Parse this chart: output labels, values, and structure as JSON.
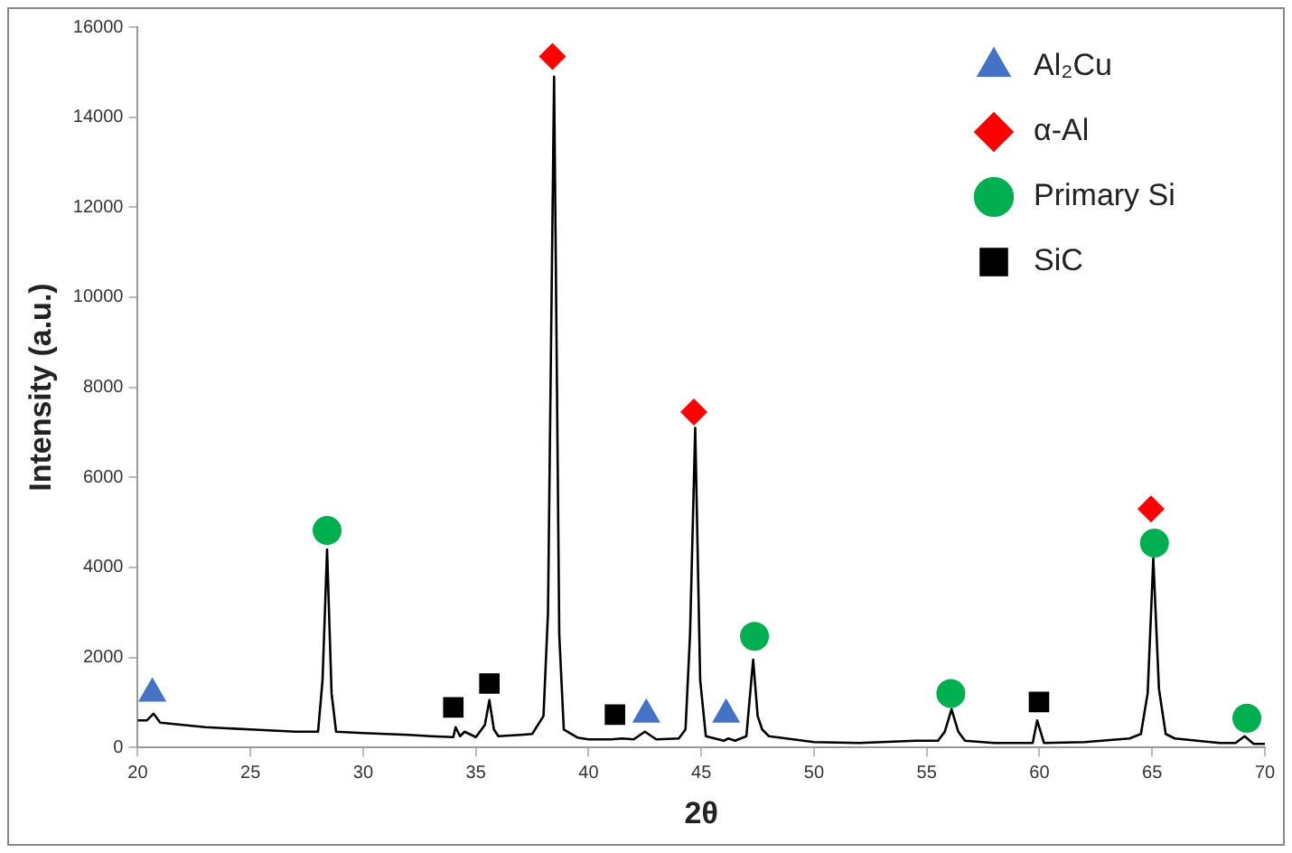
{
  "chart_data": {
    "type": "line",
    "xlabel": "2θ",
    "ylabel": "Intensity (a.u.)",
    "xlim": [
      20,
      70
    ],
    "xticks": [
      20,
      25,
      30,
      35,
      40,
      45,
      50,
      55,
      60,
      65,
      70
    ],
    "ylim": [
      0,
      16000
    ],
    "yticks": [
      0,
      2000,
      4000,
      6000,
      8000,
      10000,
      12000,
      14000,
      16000
    ],
    "grid": false,
    "legend": "top right",
    "series": [
      {
        "color": "#000000",
        "marker": "none",
        "x": [
          20,
          20.4,
          20.7,
          21,
          22,
          23,
          25,
          27,
          28,
          28.2,
          28.4,
          28.6,
          28.8,
          30,
          32,
          33,
          34,
          34.1,
          34.3,
          34.5,
          35,
          35.4,
          35.6,
          35.8,
          36,
          37,
          37.5,
          38,
          38.2,
          38.47,
          38.7,
          38.9,
          39.5,
          40,
          41,
          41.5,
          42,
          42.5,
          43,
          44,
          44.3,
          44.5,
          44.73,
          44.95,
          45.2,
          46,
          46.2,
          46.5,
          47,
          47.3,
          47.5,
          47.7,
          48,
          50,
          52,
          54.5,
          55.5,
          55.8,
          56.1,
          56.4,
          56.7,
          58,
          59.7,
          59.9,
          60.2,
          62,
          64,
          64.5,
          64.8,
          65.05,
          65.3,
          65.6,
          66,
          68,
          68.7,
          69.1,
          69.5,
          70
        ],
        "values": [
          600,
          600,
          750,
          550,
          500,
          450,
          400,
          350,
          350,
          1500,
          4400,
          1200,
          350,
          320,
          280,
          250,
          230,
          450,
          250,
          350,
          230,
          500,
          1050,
          400,
          250,
          280,
          300,
          700,
          3000,
          14900,
          2500,
          400,
          220,
          180,
          180,
          200,
          180,
          350,
          180,
          200,
          400,
          2500,
          7100,
          1500,
          250,
          150,
          200,
          150,
          250,
          1950,
          700,
          400,
          250,
          120,
          100,
          150,
          150,
          350,
          850,
          350,
          150,
          100,
          100,
          600,
          100,
          120,
          200,
          300,
          1200,
          4200,
          1300,
          300,
          200,
          100,
          100,
          250,
          80,
          80
        ]
      },
      {
        "type": "scatter",
        "name": "Al₂Cu",
        "color": "#4472c4",
        "marker": "triangle",
        "x": [
          20.65,
          42.56,
          46.1
        ],
        "values": [
          1200,
          730,
          730
        ]
      },
      {
        "type": "scatter",
        "name": "α-Al",
        "color": "#ff0000",
        "marker": "diamond",
        "x": [
          38.4,
          44.67,
          64.95
        ],
        "values": [
          15350,
          7450,
          5300
        ]
      },
      {
        "type": "scatter",
        "name": "Primary Si",
        "color": "#00b050",
        "marker": "circle",
        "x": [
          28.4,
          47.36,
          56.07,
          65.1,
          69.2
        ],
        "values": [
          4820,
          2470,
          1200,
          4540,
          650
        ]
      },
      {
        "type": "scatter",
        "name": "SiC",
        "color": "#000000",
        "marker": "square",
        "x": [
          34.0,
          35.6,
          41.17,
          59.98
        ],
        "values": [
          890,
          1420,
          730,
          1010
        ]
      }
    ]
  }
}
